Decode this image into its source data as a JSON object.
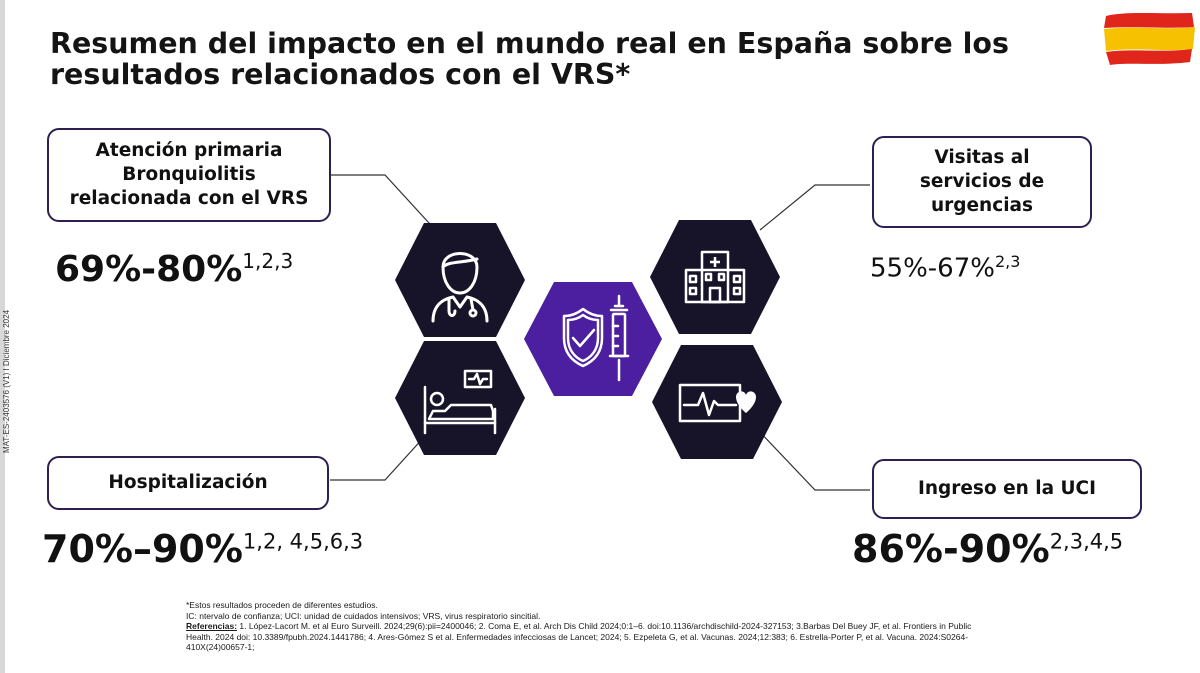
{
  "title": "Resumen del impacto en el mundo real en España sobre los resultados relacionados con el VRS*",
  "side_code": "MAT-ES-2403576 (V1) I Diciembre 2024",
  "colors": {
    "accent": "#4b1fa0",
    "dark_hex": "#17142a",
    "box_border": "#2e1f52",
    "flag_red": "#e0251b",
    "flag_yellow": "#f6c200"
  },
  "outcomes": {
    "primary_care": {
      "label_lines": [
        "Atención primaria",
        "Bronquiolitis",
        "relacionada con el VRS"
      ],
      "value": "69%-80%",
      "refs": "1,2,3",
      "icon": "doctor-icon"
    },
    "emergency": {
      "label_lines": [
        "Visitas al",
        "servicios de",
        "urgencias"
      ],
      "value": "55%-67%",
      "refs": "2,3",
      "icon": "hospital-building-icon"
    },
    "hospitalization": {
      "label": "Hospitalización",
      "value": "70%–90%",
      "refs": "1,2, 4,5,6,3",
      "icon": "hospital-bed-icon"
    },
    "icu": {
      "label": "Ingreso en la UCI",
      "value": "86%-90%",
      "refs": "2,3,4,5",
      "icon": "heart-monitor-icon"
    }
  },
  "center_icon": "shield-syringe-icon",
  "footnotes": {
    "line1": "*Estos resultados proceden de diferentes estudios.",
    "line2": "IC: ntervalo de confianza; UCI: unidad de cuidados intensivos; VRS, virus respiratorio sincitial.",
    "ref_label": "Referencias:",
    "ref_line1": " 1. López-Lacort M. et al Euro Surveill. 2024;29(6):pii=2400046; 2. Coma E, et al. Arch Dis Child 2024;0:1–6. doi:10.1136/archdischild-2024-327153; 3.Barbas Del Buey JF, et al. Frontiers in Public",
    "ref_line2": "Health. 2024 doi: 10.3389/fpubh.2024.1441786;  4. Ares-Gómez S et al. Enfermedades infecciosas de Lancet; 2024; 5. Ezpeleta G, et al. Vacunas. 2024;12:383;  6. Estrella-Porter P, et al. Vacuna. 2024:S0264-",
    "ref_line3": "410X(24)00657-1;"
  }
}
